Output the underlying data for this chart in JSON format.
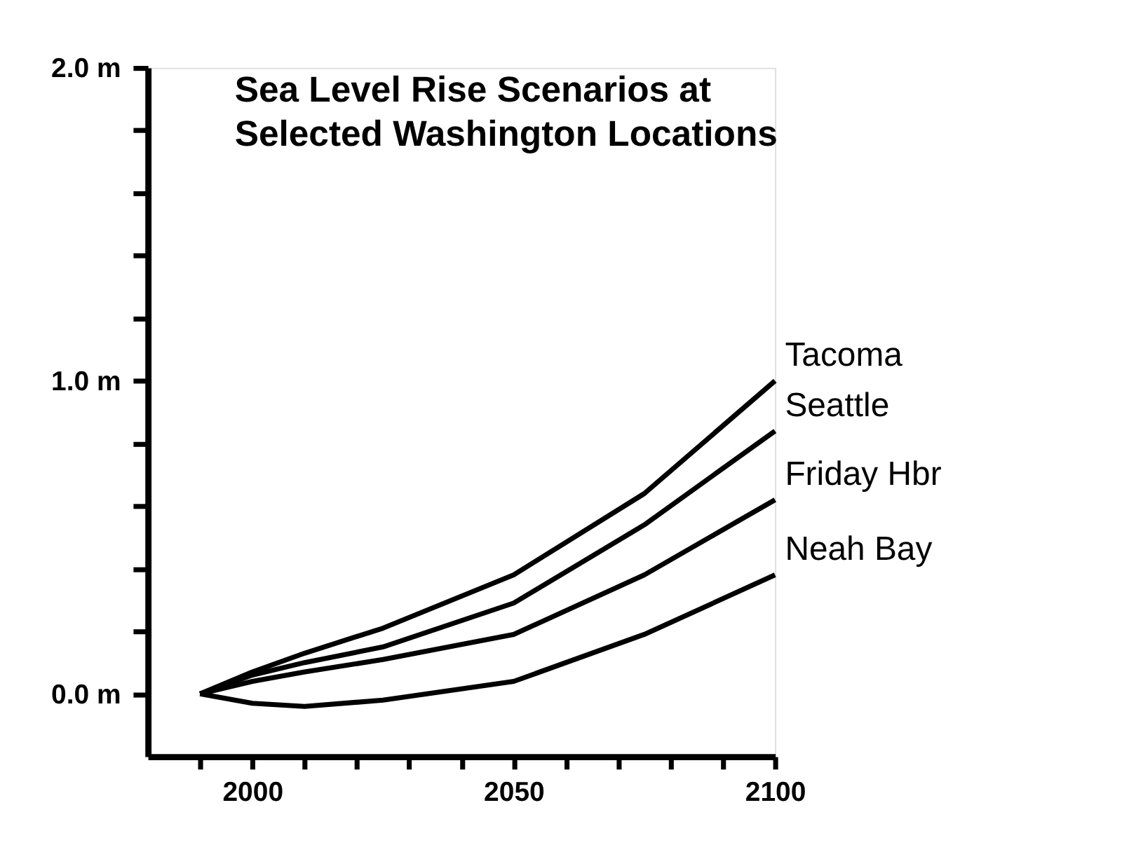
{
  "chart_data": {
    "type": "line",
    "title": "Sea Level Rise Scenarios at\nSelected Washington Locations",
    "x": [
      1990,
      2000,
      2010,
      2025,
      2050,
      2075,
      2100
    ],
    "series": [
      {
        "name": "Tacoma",
        "color": "#000000",
        "values": [
          0,
          0.07,
          0.13,
          0.21,
          0.38,
          0.64,
          1.0
        ]
      },
      {
        "name": "Seattle",
        "color": "#000000",
        "values": [
          0,
          0.06,
          0.1,
          0.15,
          0.29,
          0.54,
          0.84
        ]
      },
      {
        "name": "Friday Hbr",
        "color": "#000000",
        "values": [
          0,
          0.04,
          0.07,
          0.11,
          0.19,
          0.38,
          0.62
        ]
      },
      {
        "name": "Neah Bay",
        "color": "#000000",
        "values": [
          0,
          -0.03,
          -0.04,
          -0.02,
          0.04,
          0.19,
          0.38
        ]
      }
    ],
    "xlim": [
      1980,
      2100
    ],
    "xticks": [
      {
        "value": 1990,
        "label": null
      },
      2000,
      {
        "value": 2010,
        "label": null
      },
      {
        "value": 2020,
        "label": null
      },
      {
        "value": 2030,
        "label": null
      },
      {
        "value": 2040,
        "label": null
      },
      2050,
      {
        "value": 2060,
        "label": null
      },
      {
        "value": 2070,
        "label": null
      },
      {
        "value": 2080,
        "label": null
      },
      {
        "value": 2090,
        "label": null
      },
      2100
    ],
    "ylim": [
      -0.2,
      2.0
    ],
    "yticks": [
      {
        "value": 0,
        "label": "0.0 m"
      },
      {
        "value": 0.2,
        "label": null
      },
      {
        "value": 0.4,
        "label": null
      },
      {
        "value": 0.6,
        "label": null
      },
      {
        "value": 0.8,
        "label": null
      },
      {
        "value": 1.0,
        "label": "1.0 m"
      },
      {
        "value": 1.2,
        "label": null
      },
      {
        "value": 1.4,
        "label": null
      },
      {
        "value": 1.6,
        "label": null
      },
      {
        "value": 1.8,
        "label": null
      },
      {
        "value": 2.0,
        "label": "2.0 m"
      }
    ],
    "grid": false,
    "legend": false,
    "marker": "none",
    "line_style": "solid"
  }
}
